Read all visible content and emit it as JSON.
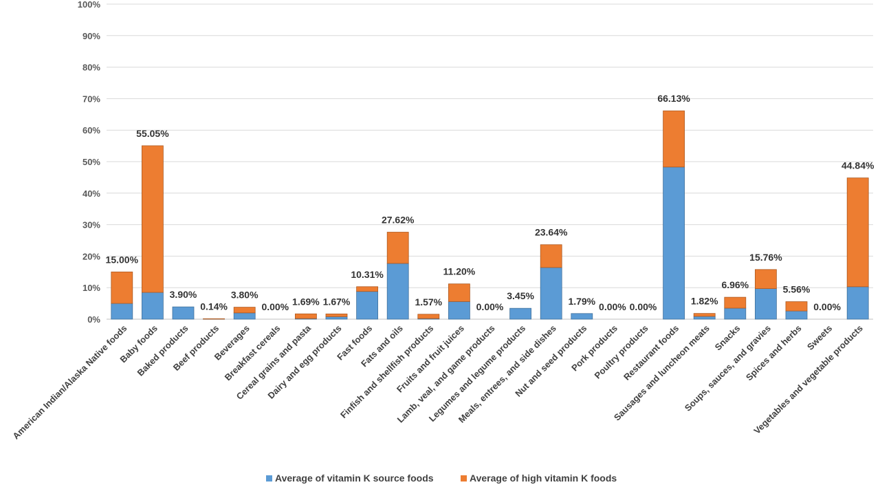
{
  "chart_data": {
    "type": "bar",
    "stacked": true,
    "grid": true,
    "legend_position": "bottom",
    "ylim": [
      0,
      100
    ],
    "yticks": [
      "0%",
      "10%",
      "20%",
      "30%",
      "40%",
      "50%",
      "60%",
      "70%",
      "80%",
      "90%",
      "100%"
    ],
    "categories": [
      "American Indian/Alaska Native foods",
      "Baby foods",
      "Baked products",
      "Beef products",
      "Beverages",
      "Breakfast cereals",
      "Cereal grains and pasta",
      "Dairy and egg products",
      "Fast foods",
      "Fats and oils",
      "Finfish and shellfish products",
      "Fruits and fruit juices",
      "Lamb, veal, and game products",
      "Legumes and legume products",
      "Meals, entrees, and side dishes",
      "Nut and seed products",
      "Pork products",
      "Poultry products",
      "Restaurant foods",
      "Sausages and luncheon meats",
      "Snacks",
      "Soups, sauces, and gravies",
      "Spices and herbs",
      "Sweets",
      "Vegetables and vegetable products"
    ],
    "series": [
      {
        "name": "Average of vitamin K source foods",
        "color": "#5B9BD5",
        "values": [
          5.0,
          8.5,
          3.9,
          0.1,
          2.0,
          0.0,
          0.2,
          0.8,
          8.8,
          17.7,
          0.2,
          5.6,
          0.0,
          3.45,
          16.4,
          1.79,
          0.0,
          0.0,
          48.3,
          0.9,
          3.5,
          9.7,
          2.6,
          0.0,
          10.3
        ]
      },
      {
        "name": "Average of high vitamin K foods",
        "color": "#ED7D31",
        "values": [
          10.0,
          46.55,
          0.0,
          0.04,
          1.8,
          0.0,
          1.49,
          0.87,
          1.51,
          9.92,
          1.37,
          5.6,
          0.0,
          0.0,
          7.24,
          0.0,
          0.0,
          0.0,
          17.83,
          0.92,
          3.46,
          6.06,
          2.96,
          0.0,
          34.54
        ]
      }
    ],
    "data_labels": [
      "15.00%",
      "55.05%",
      "3.90%",
      "0.14%",
      "3.80%",
      "0.00%",
      "1.69%",
      "1.67%",
      "10.31%",
      "27.62%",
      "1.57%",
      "11.20%",
      "0.00%",
      "3.45%",
      "23.64%",
      "1.79%",
      "0.00%",
      "0.00%",
      "66.13%",
      "1.82%",
      "6.96%",
      "15.76%",
      "5.56%",
      "0.00%",
      "44.84%"
    ]
  }
}
